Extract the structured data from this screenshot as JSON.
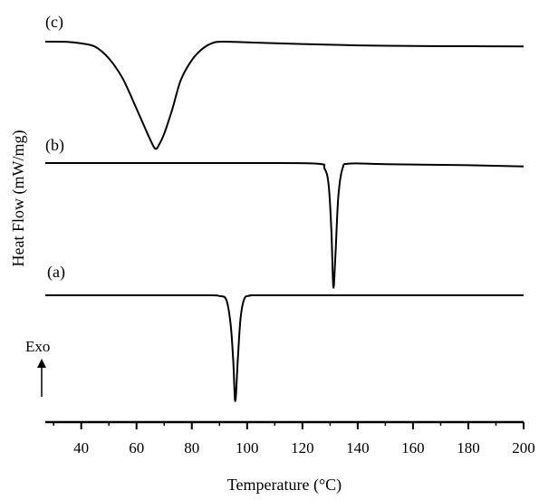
{
  "chart_data": {
    "type": "line",
    "xlabel": "Temperature (°C)",
    "ylabel": "Heat Flow (mW/mg)",
    "xlim": [
      27,
      200
    ],
    "x_ticks": [
      40,
      60,
      80,
      100,
      120,
      140,
      160,
      180,
      200
    ],
    "grid": false,
    "exo_label": "Exo",
    "exo_direction": "up",
    "series": [
      {
        "name": "(c)",
        "x": [
          27,
          35,
          40,
          45,
          50,
          55,
          60,
          64,
          66,
          67,
          68,
          70,
          73,
          76,
          80,
          84,
          88,
          92,
          100,
          120,
          140,
          160,
          180,
          200
        ],
        "y": [
          100,
          99.9,
          99,
          97,
          90,
          78,
          60,
          45,
          38,
          36,
          38,
          45,
          60,
          77,
          89,
          96,
          99.5,
          100,
          99.6,
          98.6,
          97.8,
          97.4,
          97.3,
          97.2
        ]
      },
      {
        "name": "(b)",
        "x": [
          27,
          60,
          100,
          125,
          128,
          129.5,
          130.5,
          131.2,
          132,
          133,
          134.5,
          137,
          150,
          180,
          200
        ],
        "y": [
          100,
          100,
          100,
          99.8,
          98,
          92,
          75,
          55,
          68,
          88,
          98,
          99.8,
          99.6,
          99.2,
          98.8
        ]
      },
      {
        "name": "(a)",
        "x": [
          27,
          60,
          85,
          90,
          92.5,
          94,
          95,
          95.7,
          96.6,
          97.6,
          99,
          101,
          105,
          140,
          200
        ],
        "y": [
          100,
          100,
          100,
          99.7,
          98,
          88,
          72,
          55,
          72,
          90,
          98.5,
          99.8,
          100,
          100,
          100
        ]
      }
    ]
  }
}
